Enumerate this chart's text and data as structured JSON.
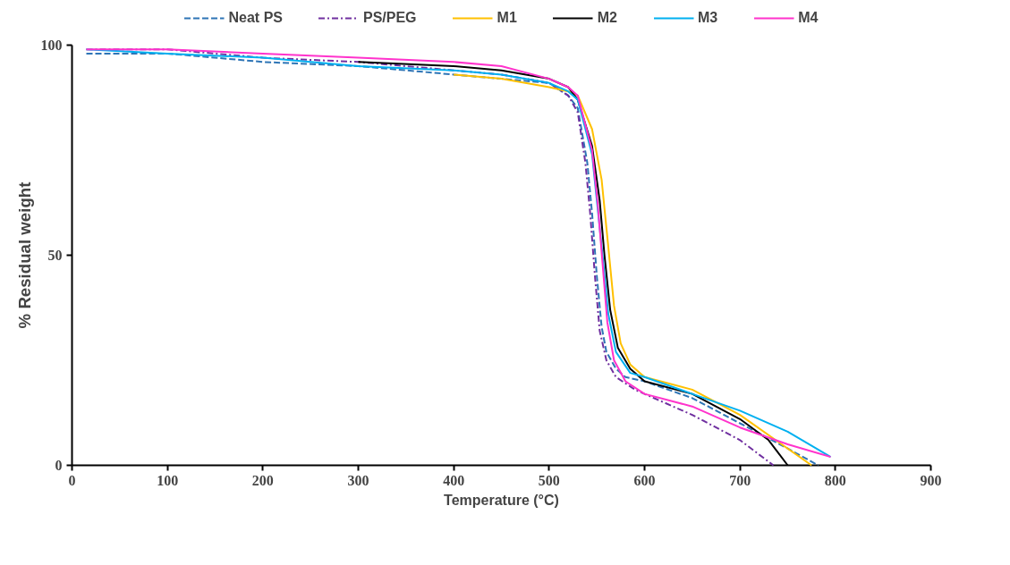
{
  "chart_data": {
    "type": "line",
    "xlabel": "Temperature (°C)",
    "ylabel": "% Residual weight",
    "xlim": [
      0,
      900
    ],
    "xticks": [
      0,
      100,
      200,
      300,
      400,
      500,
      600,
      700,
      800,
      900
    ],
    "ylim": [
      0,
      100
    ],
    "yticks": [
      0,
      50,
      100
    ],
    "grid": false,
    "legend": "top",
    "marker": "none",
    "series": [
      {
        "name": "Neat PS",
        "color": "#2e75b6",
        "line_style": "dashed",
        "x": [
          15,
          100,
          200,
          300,
          400,
          450,
          500,
          520,
          530,
          540,
          545,
          550,
          555,
          560,
          570,
          580,
          600,
          650,
          700,
          750,
          782
        ],
        "values": [
          98,
          98,
          96,
          95,
          93,
          92,
          91,
          88,
          85,
          72,
          60,
          45,
          33,
          27,
          23,
          21,
          20,
          16,
          10,
          4,
          0
        ]
      },
      {
        "name": "PS/PEG",
        "color": "#7030a0",
        "line_style": "dashdot",
        "x": [
          15,
          100,
          200,
          300,
          400,
          450,
          500,
          520,
          530,
          538,
          543,
          548,
          553,
          560,
          570,
          590,
          600,
          650,
          700,
          735
        ],
        "values": [
          99,
          99,
          97,
          96,
          94,
          93,
          91,
          88,
          84,
          72,
          60,
          45,
          32,
          25,
          21,
          18,
          17,
          12,
          6,
          0
        ]
      },
      {
        "name": "M1",
        "color": "#ffc000",
        "line_style": "solid",
        "x": [
          400,
          450,
          500,
          520,
          530,
          545,
          555,
          562,
          568,
          575,
          585,
          600,
          650,
          700,
          750,
          775
        ],
        "values": [
          93,
          92,
          90,
          89,
          88,
          80,
          68,
          52,
          38,
          29,
          24,
          21,
          18,
          12,
          4,
          0
        ]
      },
      {
        "name": "M2",
        "color": "#000000",
        "line_style": "solid",
        "x": [
          300,
          400,
          450,
          500,
          520,
          530,
          545,
          553,
          558,
          564,
          572,
          585,
          600,
          650,
          700,
          730,
          750
        ],
        "values": [
          96,
          95,
          94,
          92,
          90,
          87,
          76,
          63,
          50,
          37,
          28,
          23,
          20,
          17,
          11,
          6,
          0
        ]
      },
      {
        "name": "M3",
        "color": "#00b0f0",
        "line_style": "solid",
        "x": [
          15,
          100,
          200,
          300,
          400,
          450,
          500,
          520,
          530,
          545,
          550,
          556,
          562,
          570,
          585,
          600,
          650,
          700,
          750,
          795
        ],
        "values": [
          99,
          98,
          97,
          95,
          94,
          93,
          91,
          89,
          87,
          74,
          63,
          50,
          36,
          27,
          22,
          21,
          17,
          13,
          8,
          2
        ]
      },
      {
        "name": "M4",
        "color": "#ff33cc",
        "line_style": "solid",
        "x": [
          15,
          100,
          200,
          300,
          400,
          450,
          500,
          520,
          530,
          545,
          551,
          556,
          561,
          568,
          580,
          600,
          650,
          700,
          750,
          795
        ],
        "values": [
          99,
          99,
          98,
          97,
          96,
          95,
          92,
          90,
          88,
          75,
          62,
          48,
          34,
          25,
          20,
          17,
          14,
          9,
          5,
          2
        ]
      }
    ]
  }
}
